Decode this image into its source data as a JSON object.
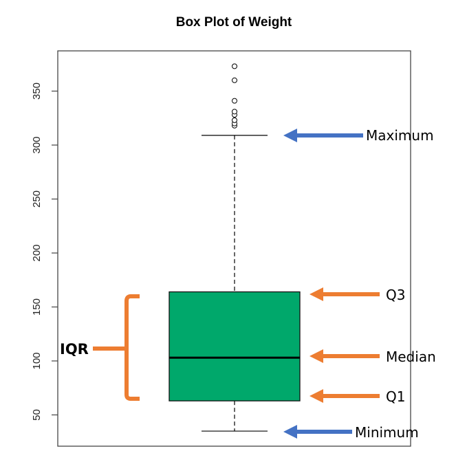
{
  "chart_data": {
    "type": "box",
    "title": "Box Plot of Weight",
    "xlabel": "",
    "ylabel": "",
    "ylim": [
      20,
      385
    ],
    "yticks": [
      50,
      100,
      150,
      200,
      250,
      300,
      350
    ],
    "ytick_labels": [
      "50",
      "100",
      "150",
      "200",
      "250",
      "300",
      "350"
    ],
    "grid": false,
    "series": [
      {
        "name": "Weight",
        "minimum": 35,
        "q1": 63,
        "median": 103,
        "q3": 164,
        "maximum": 309,
        "outliers": [
          318,
          320,
          323,
          328,
          331,
          341,
          360,
          373
        ],
        "fill_color": "#00a86b"
      }
    ],
    "annotations": [
      {
        "label": "Maximum",
        "target": "maximum",
        "arrow_color": "#4472c4"
      },
      {
        "label": "Q3",
        "target": "q3",
        "arrow_color": "#ed7d31"
      },
      {
        "label": "Median",
        "target": "median",
        "arrow_color": "#ed7d31"
      },
      {
        "label": "Q1",
        "target": "q1",
        "arrow_color": "#ed7d31"
      },
      {
        "label": "Minimum",
        "target": "minimum",
        "arrow_color": "#4472c4"
      },
      {
        "label": "IQR",
        "target": "q1-q3",
        "bracket_color": "#ed7d31"
      }
    ]
  },
  "colors": {
    "box_fill": "#00a86b",
    "blue_arrow": "#4472c4",
    "orange_arrow": "#ed7d31",
    "axis": "#444444"
  }
}
